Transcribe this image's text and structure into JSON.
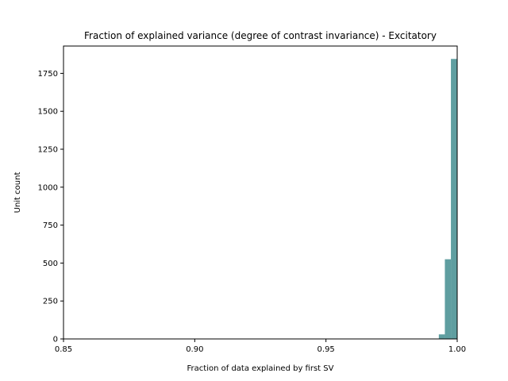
{
  "chart_data": {
    "type": "bar",
    "title": "Fraction of explained variance (degree of contrast invariance) - Excitatory",
    "xlabel": "Fraction of data explained by first SV",
    "ylabel": "Unit count",
    "xlim": [
      0.85,
      1.0
    ],
    "ylim": [
      0,
      1930
    ],
    "xticks": [
      {
        "value": 0.85,
        "label": "0.85"
      },
      {
        "value": 0.9,
        "label": "0.90"
      },
      {
        "value": 0.95,
        "label": "0.95"
      },
      {
        "value": 1.0,
        "label": "1.00"
      }
    ],
    "yticks": [
      {
        "value": 0,
        "label": "0"
      },
      {
        "value": 250,
        "label": "250"
      },
      {
        "value": 500,
        "label": "500"
      },
      {
        "value": 750,
        "label": "750"
      },
      {
        "value": 1000,
        "label": "1000"
      },
      {
        "value": 1250,
        "label": "1250"
      },
      {
        "value": 1500,
        "label": "1500"
      },
      {
        "value": 1750,
        "label": "1750"
      }
    ],
    "bins": [
      {
        "start": 0.993,
        "end": 0.9953,
        "count": 30
      },
      {
        "start": 0.9953,
        "end": 0.9976,
        "count": 525
      },
      {
        "start": 0.9976,
        "end": 1.0,
        "count": 1845
      }
    ],
    "bar_color": "#5f9ea0",
    "grid": false,
    "legend": false
  }
}
